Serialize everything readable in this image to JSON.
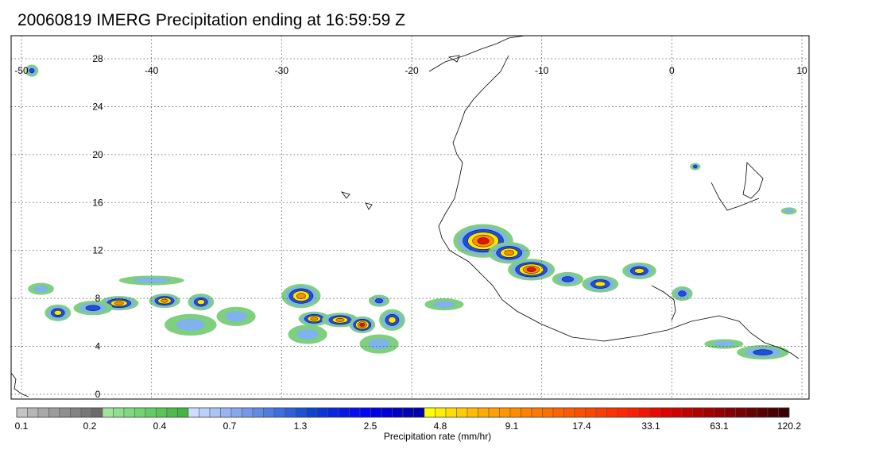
{
  "title": "20060819 IMERG Precipitation ending at 16:59:59 Z",
  "map": {
    "lon_range": [
      -50,
      10
    ],
    "lat_range": [
      -0.5,
      30
    ],
    "lon_labels": [
      "-50",
      "-40",
      "-30",
      "-20",
      "-10",
      "0",
      "10"
    ],
    "lat_labels": [
      "0",
      "4",
      "8",
      "12",
      "16",
      "20",
      "24",
      "28"
    ],
    "grid": "dotted"
  },
  "colorbar": {
    "label": "Precipitation rate (mm/hr)",
    "tick_labels": [
      "0.1",
      "0.2",
      "0.4",
      "0.7",
      "1.3",
      "2.5",
      "4.8",
      "9.1",
      "17.4",
      "33.1",
      "63.1",
      "120.2"
    ],
    "colors": [
      "#c4c4c4",
      "#b6b6b6",
      "#a9a9a9",
      "#9c9c9c",
      "#8f8f8f",
      "#838383",
      "#777777",
      "#6b6b6b",
      "#9fe59f",
      "#8fdf8f",
      "#80d980",
      "#72d372",
      "#64cc64",
      "#57c557",
      "#4cbd4c",
      "#42b542",
      "#cfdcff",
      "#bdd0fb",
      "#abc3f7",
      "#98b5f2",
      "#86a7ee",
      "#7499ea",
      "#628be6",
      "#517de2",
      "#3f6ede",
      "#2d60da",
      "#1c52d6",
      "#0b44d2",
      "#0a35d8",
      "#0826e0",
      "#0618e8",
      "#050ef0",
      "#0006f4",
      "#0000e6",
      "#0000d6",
      "#0000c6",
      "#0000b6",
      "#0000a6",
      "#ffff00",
      "#ffee00",
      "#ffdd00",
      "#ffcc00",
      "#ffbb00",
      "#ffaa00",
      "#ffa000",
      "#ff9600",
      "#ff8c00",
      "#ff8200",
      "#ff7800",
      "#ff6e00",
      "#ff6400",
      "#ff5a00",
      "#ff5000",
      "#ff4600",
      "#ff3c00",
      "#ff3200",
      "#ff2800",
      "#ff1e00",
      "#f51400",
      "#eb0a00",
      "#e10000",
      "#d20000",
      "#c30000",
      "#b40000",
      "#a50000",
      "#960000",
      "#870000",
      "#780000",
      "#690000",
      "#5a0000",
      "#4b0000",
      "#3c0000"
    ]
  },
  "precip_clusters": [
    {
      "lon": -14.5,
      "lat": 12.8,
      "rx": 2.3,
      "ry": 1.4,
      "peak": 5
    },
    {
      "lon": -12.5,
      "lat": 11.8,
      "rx": 1.6,
      "ry": 0.9,
      "peak": 4
    },
    {
      "lon": -10.8,
      "lat": 10.4,
      "rx": 1.8,
      "ry": 0.9,
      "peak": 5
    },
    {
      "lon": -8.0,
      "lat": 9.6,
      "rx": 1.2,
      "ry": 0.6,
      "peak": 2
    },
    {
      "lon": -5.5,
      "lat": 9.2,
      "rx": 1.4,
      "ry": 0.7,
      "peak": 3
    },
    {
      "lon": -2.5,
      "lat": 10.3,
      "rx": 1.3,
      "ry": 0.7,
      "peak": 3
    },
    {
      "lon": 0.8,
      "lat": 8.4,
      "rx": 0.8,
      "ry": 0.6,
      "peak": 2
    },
    {
      "lon": 7.0,
      "lat": 3.5,
      "rx": 2.0,
      "ry": 0.6,
      "peak": 2
    },
    {
      "lon": 4.0,
      "lat": 4.2,
      "rx": 1.5,
      "ry": 0.4,
      "peak": 1
    },
    {
      "lon": -28.5,
      "lat": 8.2,
      "rx": 1.5,
      "ry": 1.0,
      "peak": 4
    },
    {
      "lon": -27.5,
      "lat": 6.3,
      "rx": 1.2,
      "ry": 0.6,
      "peak": 4
    },
    {
      "lon": -25.5,
      "lat": 6.2,
      "rx": 1.4,
      "ry": 0.6,
      "peak": 4
    },
    {
      "lon": -23.8,
      "lat": 5.8,
      "rx": 1.0,
      "ry": 0.7,
      "peak": 5
    },
    {
      "lon": -21.5,
      "lat": 6.2,
      "rx": 1.0,
      "ry": 0.9,
      "peak": 3
    },
    {
      "lon": -22.5,
      "lat": 7.8,
      "rx": 0.8,
      "ry": 0.5,
      "peak": 2
    },
    {
      "lon": -28.0,
      "lat": 5.0,
      "rx": 1.5,
      "ry": 0.8,
      "peak": 1
    },
    {
      "lon": -22.5,
      "lat": 4.2,
      "rx": 1.5,
      "ry": 0.8,
      "peak": 1
    },
    {
      "lon": -42.5,
      "lat": 7.6,
      "rx": 1.5,
      "ry": 0.6,
      "peak": 4
    },
    {
      "lon": -39.0,
      "lat": 7.8,
      "rx": 1.2,
      "ry": 0.6,
      "peak": 4
    },
    {
      "lon": -36.2,
      "lat": 7.7,
      "rx": 1.0,
      "ry": 0.7,
      "peak": 3
    },
    {
      "lon": -44.5,
      "lat": 7.2,
      "rx": 1.5,
      "ry": 0.6,
      "peak": 2
    },
    {
      "lon": -47.2,
      "lat": 6.8,
      "rx": 1.0,
      "ry": 0.7,
      "peak": 3
    },
    {
      "lon": -33.5,
      "lat": 6.5,
      "rx": 1.5,
      "ry": 0.8,
      "peak": 1
    },
    {
      "lon": -37.0,
      "lat": 5.8,
      "rx": 2.0,
      "ry": 0.9,
      "peak": 1
    },
    {
      "lon": -48.5,
      "lat": 8.8,
      "rx": 1.0,
      "ry": 0.5,
      "peak": 1
    },
    {
      "lon": -40.0,
      "lat": 9.5,
      "rx": 2.5,
      "ry": 0.4,
      "peak": 1
    },
    {
      "lon": -49.2,
      "lat": 27.0,
      "rx": 0.5,
      "ry": 0.5,
      "peak": 2
    },
    {
      "lon": -17.5,
      "lat": 7.5,
      "rx": 1.5,
      "ry": 0.5,
      "peak": 1
    },
    {
      "lon": 9.0,
      "lat": 15.3,
      "rx": 0.6,
      "ry": 0.3,
      "peak": 1
    },
    {
      "lon": 1.8,
      "lat": 19.0,
      "rx": 0.4,
      "ry": 0.3,
      "peak": 2
    }
  ]
}
